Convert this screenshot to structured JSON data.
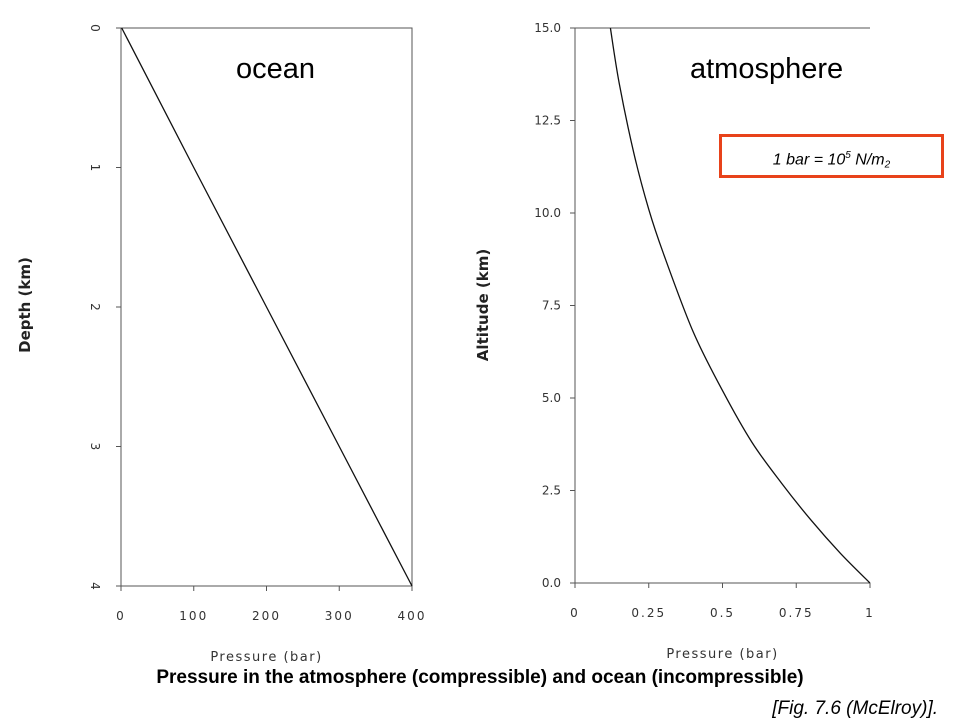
{
  "chart_data": [
    {
      "type": "line",
      "panel_title": "ocean",
      "xlabel": "Pressure (bar)",
      "ylabel": "Depth (km)",
      "xlim": [
        0,
        400
      ],
      "ylim": [
        0,
        4
      ],
      "y_inverted": true,
      "xticks": [
        0,
        100,
        200,
        300,
        400
      ],
      "xtick_labels": [
        "0",
        "100",
        "200",
        "300",
        "400"
      ],
      "yticks": [
        0,
        1,
        2,
        3,
        4
      ],
      "ytick_labels": [
        "0",
        "1",
        "2",
        "3",
        "4"
      ],
      "grid": false,
      "series": [
        {
          "x": [
            1,
            100,
            200,
            300,
            400
          ],
          "y": [
            0,
            1,
            2,
            3,
            4
          ]
        }
      ]
    },
    {
      "type": "line",
      "panel_title": "atmosphere",
      "xlabel": "Pressure (bar)",
      "ylabel": "Altitude (km)",
      "xlim": [
        0,
        1
      ],
      "ylim": [
        0,
        15
      ],
      "xticks": [
        0,
        0.25,
        0.5,
        0.75,
        1
      ],
      "xtick_labels": [
        "0",
        "0.25",
        "0.5",
        "0.75",
        "1"
      ],
      "yticks": [
        0,
        2.5,
        5,
        7.5,
        10,
        12.5,
        15
      ],
      "ytick_labels": [
        "0.0",
        "2.5",
        "5.0",
        "7.5",
        "10.0",
        "12.5",
        "15.0"
      ],
      "grid": false,
      "series": [
        {
          "x": [
            1.0,
            0.9,
            0.8,
            0.7,
            0.6,
            0.5,
            0.4,
            0.3,
            0.25,
            0.2,
            0.15,
            0.12
          ],
          "y": [
            0,
            0.8,
            1.7,
            2.7,
            3.8,
            5.2,
            6.8,
            8.9,
            10.1,
            11.6,
            13.5,
            15
          ]
        }
      ]
    }
  ],
  "conversion_note": {
    "prefix": "1 bar = 10",
    "exponent": "5",
    "mid": " N/m",
    "power": "2"
  },
  "caption": "Pressure in the atmosphere (compressible) and ocean (incompressible)",
  "citation": "[Fig. 7.6 (McElroy)].",
  "colors": {
    "curve": "#111111",
    "axis": "#555555",
    "box_border": "#e8421a"
  }
}
